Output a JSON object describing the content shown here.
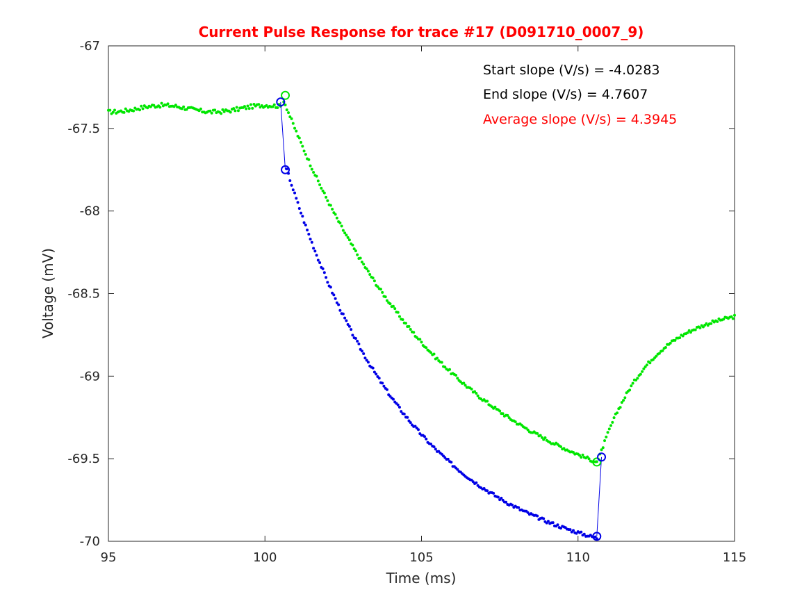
{
  "chart_data": {
    "type": "scatter",
    "title": "Current Pulse Response for trace #17 (D091710_0007_9)",
    "title_color": "#ff0000",
    "xlabel": "Time (ms)",
    "ylabel": "Voltage (mV)",
    "xlim": [
      95,
      115
    ],
    "ylim": [
      -70,
      -67
    ],
    "xticks": [
      95,
      100,
      105,
      110,
      115
    ],
    "xtick_labels": [
      "95",
      "100",
      "105",
      "110",
      "115"
    ],
    "yticks": [
      -67,
      -67.5,
      -68,
      -68.5,
      -69,
      -69.5,
      -70
    ],
    "ytick_labels": [
      "-67",
      "-67.5",
      "-68",
      "-68.5",
      "-69",
      "-69.5",
      "-70"
    ],
    "series": [
      {
        "name": "recorded trace",
        "color": "#00e600",
        "marker": "dot",
        "baseline_ms": [
          95.0,
          100.5
        ],
        "baseline_mV": -67.38,
        "decay_ms": [
          100.6,
          110.6
        ],
        "decay_start_mV": -67.33,
        "decay_end_mV": -69.52,
        "recovery_ms": [
          110.7,
          115.0
        ],
        "recovery_start_mV": -69.48,
        "recovery_end_mV": -68.64
      },
      {
        "name": "corrected trace",
        "color": "#0000e6",
        "marker": "dot",
        "decay_ms": [
          100.7,
          110.6
        ],
        "decay_start_mV": -67.75,
        "decay_end_mV": -69.98
      }
    ],
    "markers": [
      {
        "name": "start-green",
        "x": 100.65,
        "y": -67.3,
        "color": "#00e600"
      },
      {
        "name": "end-green",
        "x": 110.6,
        "y": -69.52,
        "color": "#00e600"
      },
      {
        "name": "start-blue-top",
        "x": 100.5,
        "y": -67.34,
        "color": "#0000e6"
      },
      {
        "name": "start-blue-bottom",
        "x": 100.65,
        "y": -67.75,
        "color": "#0000e6"
      },
      {
        "name": "end-blue-bottom",
        "x": 110.6,
        "y": -69.97,
        "color": "#0000e6"
      },
      {
        "name": "end-blue-top",
        "x": 110.75,
        "y": -69.49,
        "color": "#0000e6"
      }
    ],
    "slope_lines": [
      {
        "name": "start-slope-line",
        "x1": 100.5,
        "y1": -67.34,
        "x2": 100.65,
        "y2": -67.75,
        "color": "#0000e6"
      },
      {
        "name": "end-slope-line",
        "x1": 110.6,
        "y1": -69.97,
        "x2": 110.75,
        "y2": -69.49,
        "color": "#0000e6"
      }
    ],
    "annotations": [
      {
        "text": "Start slope (V/s) = -4.0283",
        "color": "#000000"
      },
      {
        "text": "End slope (V/s) = 4.7607",
        "color": "#000000"
      },
      {
        "text": "Average slope (V/s) = 4.3945",
        "color": "#ff0000"
      }
    ]
  }
}
